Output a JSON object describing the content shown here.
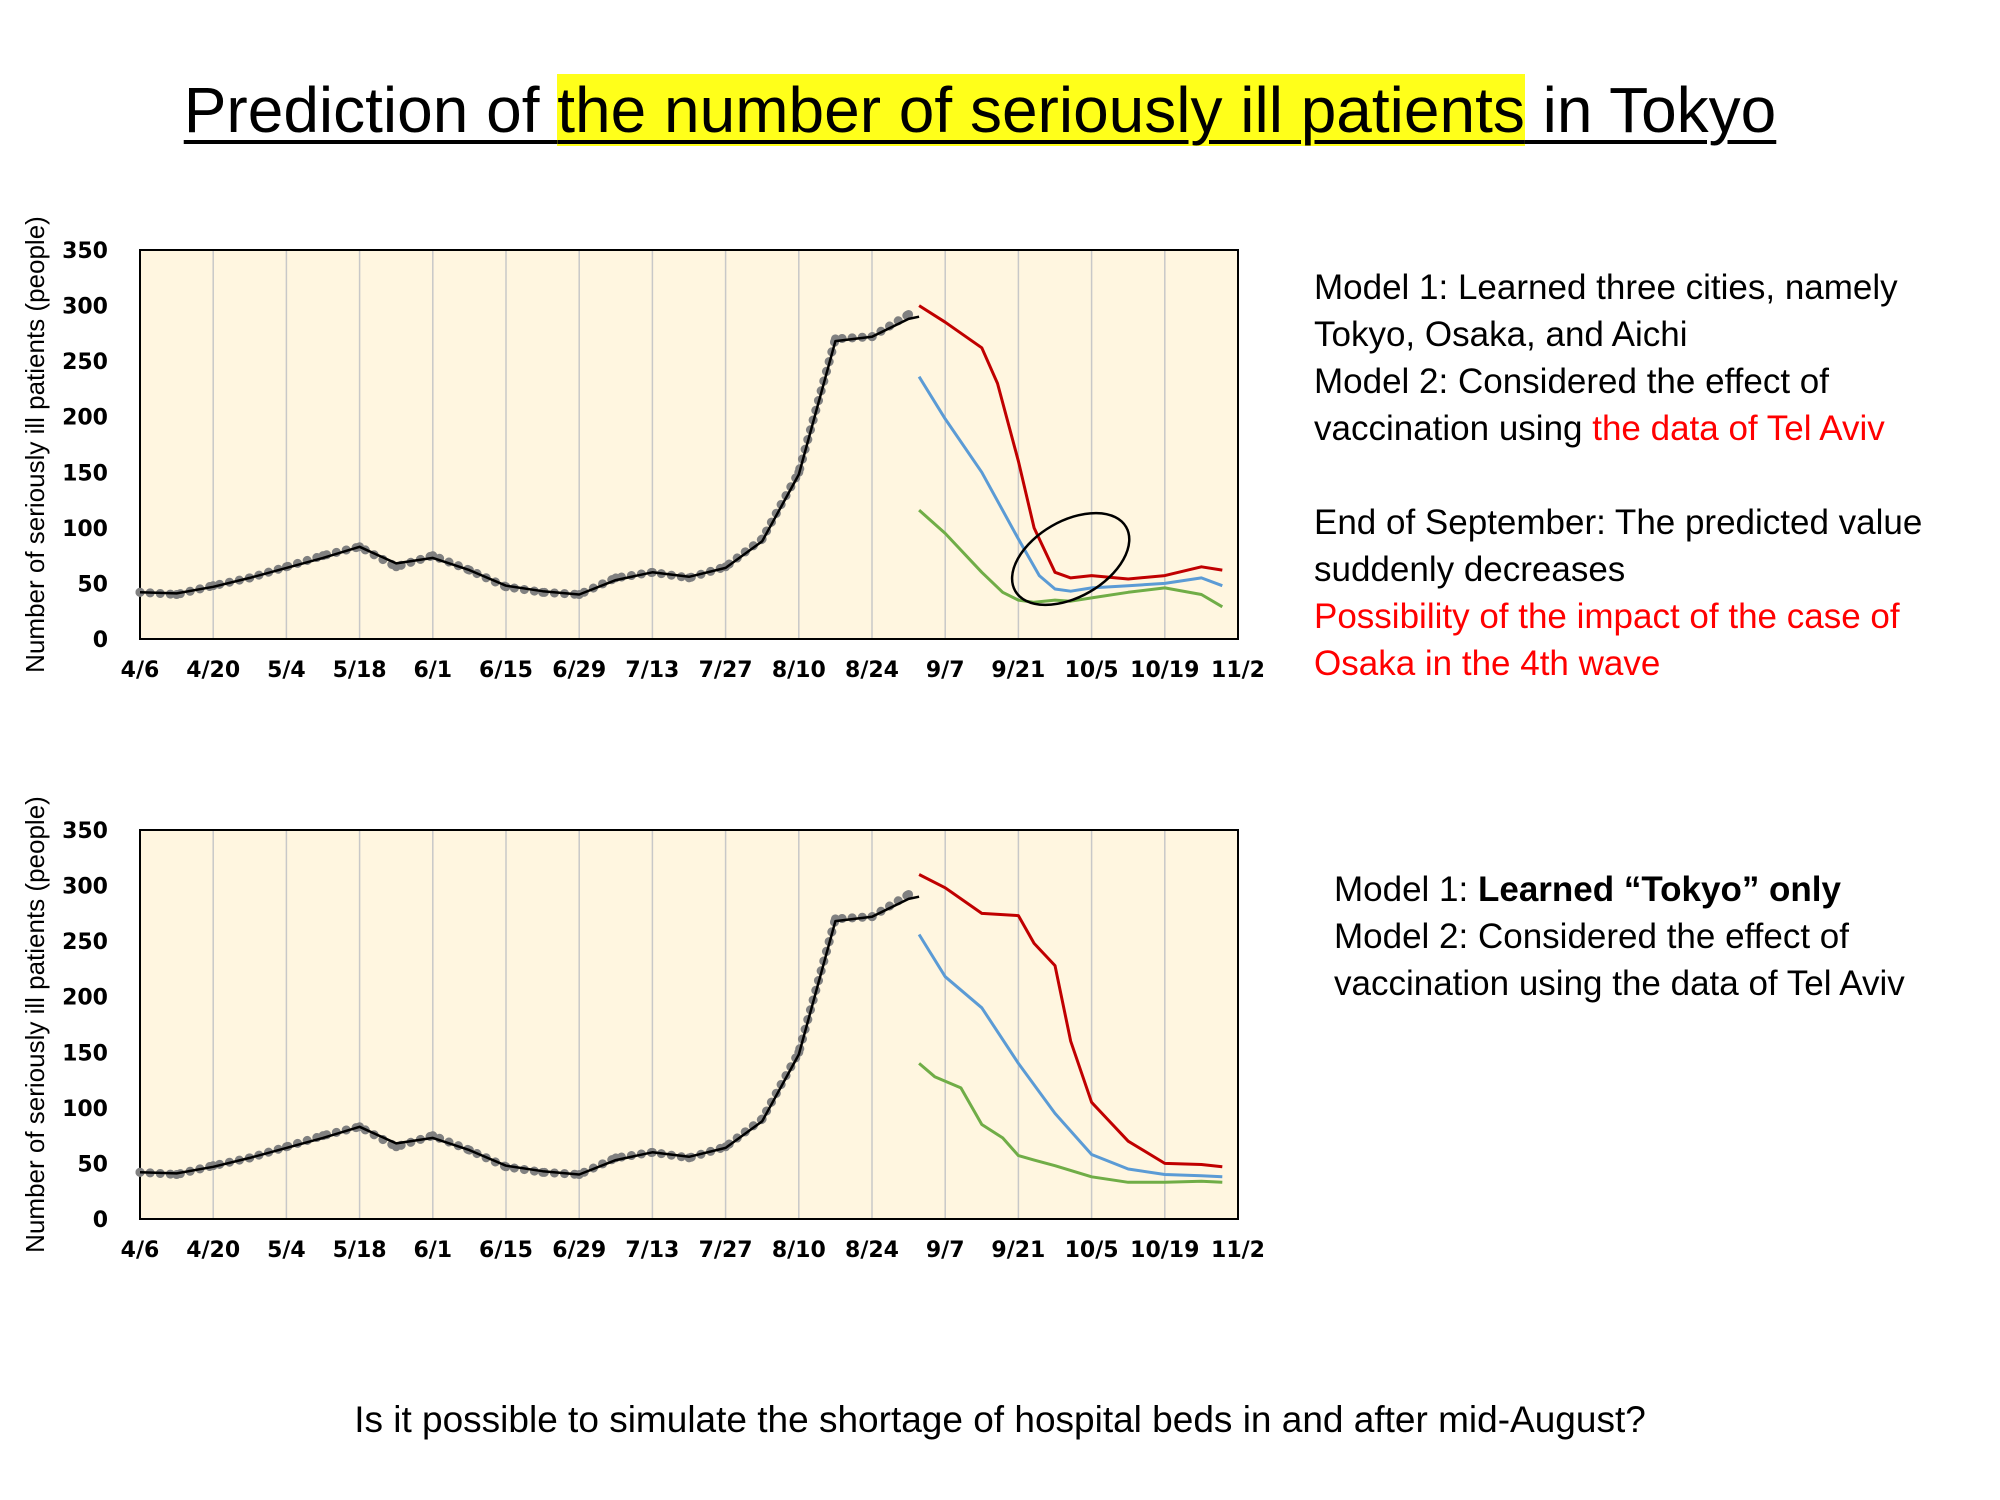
{
  "title": {
    "pre": "Prediction of ",
    "highlight": "the number of seriously ill patients",
    "post": " in Tokyo"
  },
  "note_top": {
    "line1": "Model 1: Learned three cities, namely Tokyo, Osaka, and Aichi",
    "line2_black": "Model 2: Considered the effect of vaccination using ",
    "line2_red": "the data of Tel Aviv",
    "line3": "End of September: The predicted value suddenly decreases",
    "line4_red": "Possibility of the impact of the case of Osaka in the 4th wave"
  },
  "note_bottom": {
    "line1_pre": "Model 1: ",
    "line1_bold": "Learned “Tokyo” only",
    "line2": "Model 2: Considered the effect of vaccination using the data of Tel Aviv"
  },
  "footer": "Is it possible to simulate the shortage of hospital beds in and after mid-August?",
  "colors": {
    "plot_bg": "#fff6e0",
    "observed": "#808080",
    "fit": "#000000",
    "red": "#c00000",
    "blue": "#5b9bd5",
    "green": "#70ad47",
    "highlight": "#ffff1a"
  },
  "chart_data": [
    {
      "type": "line",
      "ylabel": "Number of seriously ill patients (people)",
      "x_ticks": [
        "4/6",
        "4/20",
        "5/4",
        "5/18",
        "6/1",
        "6/15",
        "6/29",
        "7/13",
        "7/27",
        "8/10",
        "8/24",
        "9/7",
        "9/21",
        "10/5",
        "10/19",
        "11/2"
      ],
      "ylim": [
        0,
        350
      ],
      "y_ticks": [
        0,
        50,
        100,
        150,
        200,
        250,
        300,
        350
      ],
      "annotation": "ellipse around late September / early October",
      "series": [
        {
          "kind": "observed",
          "x": [
            "4/6",
            "4/13",
            "4/20",
            "4/27",
            "5/4",
            "5/11",
            "5/18",
            "5/25",
            "6/1",
            "6/8",
            "6/15",
            "6/22",
            "6/29",
            "7/6",
            "7/13",
            "7/20",
            "7/27",
            "8/3",
            "8/10",
            "8/17",
            "8/24",
            "8/31"
          ],
          "values": [
            42,
            40,
            48,
            55,
            65,
            75,
            83,
            65,
            75,
            62,
            47,
            42,
            40,
            55,
            60,
            55,
            65,
            90,
            150,
            270,
            272,
            292
          ]
        },
        {
          "kind": "fit",
          "x": [
            "4/6",
            "4/13",
            "4/20",
            "4/27",
            "5/4",
            "5/11",
            "5/18",
            "5/25",
            "6/1",
            "6/8",
            "6/15",
            "6/22",
            "6/29",
            "7/6",
            "7/13",
            "7/20",
            "7/27",
            "8/3",
            "8/10",
            "8/17",
            "8/24",
            "8/31",
            "9/2"
          ],
          "values": [
            42,
            41,
            47,
            55,
            64,
            73,
            83,
            68,
            73,
            62,
            48,
            43,
            40,
            53,
            60,
            56,
            64,
            88,
            148,
            268,
            272,
            288,
            290
          ]
        },
        {
          "kind": "red",
          "x": [
            "9/2",
            "9/7",
            "9/14",
            "9/17",
            "9/21",
            "9/24",
            "9/28",
            "10/1",
            "10/5",
            "10/12",
            "10/19",
            "10/26",
            "10/30"
          ],
          "values": [
            300,
            285,
            262,
            230,
            160,
            100,
            60,
            55,
            57,
            54,
            57,
            65,
            62
          ]
        },
        {
          "kind": "blue",
          "x": [
            "9/2",
            "9/7",
            "9/14",
            "9/21",
            "9/25",
            "9/28",
            "10/1",
            "10/5",
            "10/12",
            "10/19",
            "10/26",
            "10/30"
          ],
          "values": [
            236,
            198,
            150,
            90,
            57,
            45,
            43,
            46,
            48,
            50,
            55,
            48
          ]
        },
        {
          "kind": "green",
          "x": [
            "9/2",
            "9/7",
            "9/14",
            "9/18",
            "9/21",
            "9/24",
            "9/28",
            "10/1",
            "10/5",
            "10/12",
            "10/19",
            "10/26",
            "10/30"
          ],
          "values": [
            116,
            95,
            60,
            42,
            35,
            33,
            35,
            34,
            37,
            42,
            46,
            40,
            29
          ]
        }
      ]
    },
    {
      "type": "line",
      "ylabel": "Number of seriously ill patients (people)",
      "x_ticks": [
        "4/6",
        "4/20",
        "5/4",
        "5/18",
        "6/1",
        "6/15",
        "6/29",
        "7/13",
        "7/27",
        "8/10",
        "8/24",
        "9/7",
        "9/21",
        "10/5",
        "10/19",
        "11/2"
      ],
      "ylim": [
        0,
        350
      ],
      "y_ticks": [
        0,
        50,
        100,
        150,
        200,
        250,
        300,
        350
      ],
      "series": [
        {
          "kind": "observed",
          "x": [
            "4/6",
            "4/13",
            "4/20",
            "4/27",
            "5/4",
            "5/11",
            "5/18",
            "5/25",
            "6/1",
            "6/8",
            "6/15",
            "6/22",
            "6/29",
            "7/6",
            "7/13",
            "7/20",
            "7/27",
            "8/3",
            "8/10",
            "8/17",
            "8/24",
            "8/31"
          ],
          "values": [
            42,
            40,
            48,
            55,
            65,
            75,
            83,
            65,
            75,
            62,
            47,
            42,
            40,
            55,
            60,
            55,
            65,
            90,
            150,
            270,
            272,
            292
          ]
        },
        {
          "kind": "fit",
          "x": [
            "4/6",
            "4/13",
            "4/20",
            "4/27",
            "5/4",
            "5/11",
            "5/18",
            "5/25",
            "6/1",
            "6/8",
            "6/15",
            "6/22",
            "6/29",
            "7/6",
            "7/13",
            "7/20",
            "7/27",
            "8/3",
            "8/10",
            "8/17",
            "8/24",
            "8/31",
            "9/2"
          ],
          "values": [
            42,
            41,
            47,
            55,
            64,
            73,
            83,
            68,
            73,
            62,
            48,
            43,
            40,
            53,
            60,
            56,
            64,
            88,
            148,
            268,
            272,
            288,
            290
          ]
        },
        {
          "kind": "red",
          "x": [
            "9/2",
            "9/7",
            "9/14",
            "9/21",
            "9/24",
            "9/28",
            "10/1",
            "10/5",
            "10/8",
            "10/12",
            "10/19",
            "10/26",
            "10/30"
          ],
          "values": [
            310,
            298,
            275,
            273,
            248,
            228,
            160,
            105,
            90,
            70,
            50,
            49,
            47
          ]
        },
        {
          "kind": "blue",
          "x": [
            "9/2",
            "9/7",
            "9/14",
            "9/21",
            "9/28",
            "10/5",
            "10/12",
            "10/19",
            "10/26",
            "10/30"
          ],
          "values": [
            256,
            218,
            190,
            140,
            95,
            58,
            45,
            40,
            39,
            38
          ]
        },
        {
          "kind": "green",
          "x": [
            "9/2",
            "9/5",
            "9/10",
            "9/14",
            "9/18",
            "9/21",
            "9/24",
            "9/28",
            "10/5",
            "10/12",
            "10/19",
            "10/26",
            "10/30"
          ],
          "values": [
            140,
            128,
            118,
            85,
            73,
            57,
            53,
            48,
            38,
            33,
            33,
            34,
            33
          ]
        }
      ]
    }
  ]
}
